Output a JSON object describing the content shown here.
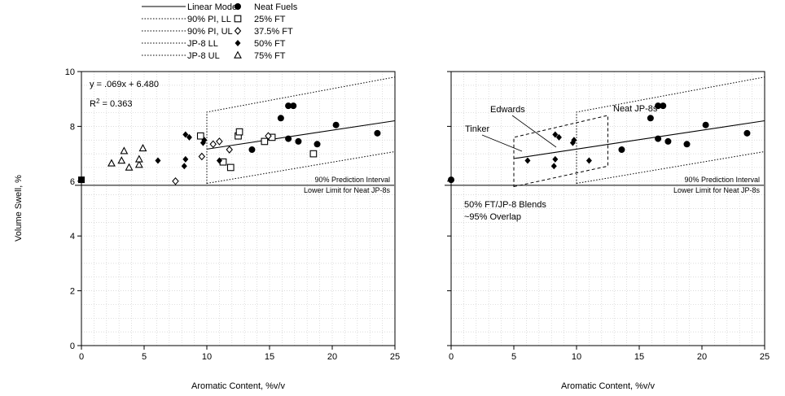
{
  "figure": {
    "ylabel": "Volume Swell, %",
    "legend": [
      {
        "label": "Linear Model",
        "kind": "line",
        "style": "solid"
      },
      {
        "label": "90% PI, LL",
        "kind": "line",
        "style": "dotted"
      },
      {
        "label": "90% PI, UL",
        "kind": "line",
        "style": "dotted"
      },
      {
        "label": "JP-8 LL",
        "kind": "line",
        "style": "dotted"
      },
      {
        "label": "JP-8 UL",
        "kind": "line",
        "style": "dotted"
      },
      {
        "label": "Neat Fuels",
        "kind": "marker",
        "marker": "filled-circle"
      },
      {
        "label": "25% FT",
        "kind": "marker",
        "marker": "open-square"
      },
      {
        "label": "37.5% FT",
        "kind": "marker",
        "marker": "open-diamond"
      },
      {
        "label": "50% FT",
        "kind": "marker",
        "marker": "filled-diamond"
      },
      {
        "label": "75% FT",
        "kind": "marker",
        "marker": "open-triangle"
      }
    ],
    "colors": {
      "ink": "#000000",
      "grid": "#cfcfcf"
    }
  },
  "chart_data": [
    {
      "type": "scatter",
      "panel": "left",
      "xlabel": "Aromatic Content, %v/v",
      "ylabel": "Volume Swell, %",
      "xlim": [
        0,
        25
      ],
      "ylim": [
        0,
        10
      ],
      "xticks": [
        0,
        5,
        10,
        15,
        20,
        25
      ],
      "yticks": [
        0,
        2,
        4,
        6,
        8,
        10
      ],
      "grid": true,
      "model": {
        "slope": 0.069,
        "intercept": 6.48,
        "x_range": [
          10,
          25
        ]
      },
      "pi_band": {
        "x_range": [
          10,
          25
        ],
        "ll_at_start": 5.92,
        "ll_at_end": 7.08,
        "ul_at_start": 8.52,
        "ul_at_end": 9.8
      },
      "annotations": {
        "equation": "y = .069x + 6.480",
        "r2_prefix": "R",
        "r2_exp": "2",
        "r2_rest": " = 0.363",
        "pi_line1": "90% Prediction Interval",
        "pi_line2": "Lower Limit for Neat JP-8s"
      },
      "threshold_y": 5.85,
      "series": [
        {
          "name": "Neat Fuels",
          "marker": "filled-circle",
          "points": [
            [
              13.6,
              7.15
            ],
            [
              15.9,
              8.3
            ],
            [
              16.5,
              7.55
            ],
            [
              16.5,
              8.75
            ],
            [
              16.9,
              8.75
            ],
            [
              17.3,
              7.45
            ],
            [
              18.8,
              7.35
            ],
            [
              20.3,
              8.05
            ],
            [
              23.6,
              7.75
            ]
          ]
        },
        {
          "name": "25% FT",
          "marker": "open-square",
          "points": [
            [
              9.5,
              7.65
            ],
            [
              11.3,
              6.7
            ],
            [
              11.9,
              6.5
            ],
            [
              12.5,
              7.65
            ],
            [
              12.6,
              7.8
            ],
            [
              14.6,
              7.45
            ],
            [
              15.2,
              7.6
            ],
            [
              18.5,
              7.0
            ]
          ]
        },
        {
          "name": "37.5% FT",
          "marker": "open-diamond",
          "points": [
            [
              7.5,
              6.0
            ],
            [
              9.6,
              6.9
            ],
            [
              10.5,
              7.35
            ],
            [
              11.0,
              7.45
            ],
            [
              11.8,
              7.15
            ],
            [
              14.9,
              7.65
            ]
          ]
        },
        {
          "name": "50% FT",
          "marker": "filled-diamond",
          "points": [
            [
              6.1,
              6.75
            ],
            [
              8.2,
              6.55
            ],
            [
              8.3,
              6.8
            ],
            [
              8.3,
              7.7
            ],
            [
              8.6,
              7.6
            ],
            [
              9.7,
              7.4
            ],
            [
              9.8,
              7.5
            ],
            [
              11.0,
              6.75
            ]
          ]
        },
        {
          "name": "75% FT",
          "marker": "open-triangle",
          "points": [
            [
              2.4,
              6.65
            ],
            [
              3.2,
              6.75
            ],
            [
              3.4,
              7.1
            ],
            [
              3.8,
              6.5
            ],
            [
              4.6,
              6.6
            ],
            [
              4.6,
              6.8
            ],
            [
              4.9,
              7.2
            ]
          ]
        },
        {
          "name": "",
          "marker": "filled-square",
          "points": [
            [
              0,
              6.05
            ]
          ]
        }
      ]
    },
    {
      "type": "scatter",
      "panel": "right",
      "xlabel": "Aromatic Content, %v/v",
      "xlim": [
        0,
        25
      ],
      "ylim": [
        0,
        10
      ],
      "xticks": [
        0,
        5,
        10,
        15,
        20,
        25
      ],
      "yticks": [
        0,
        2,
        4,
        6,
        8,
        10
      ],
      "grid": true,
      "model": {
        "slope": 0.069,
        "intercept": 6.48,
        "x_range": [
          5,
          25
        ]
      },
      "pi_band": {
        "x_range": [
          10,
          25
        ],
        "ll_at_start": 5.92,
        "ll_at_end": 7.08,
        "ul_at_start": 8.52,
        "ul_at_end": 9.8
      },
      "blend_band": {
        "x_range": [
          5,
          12.5
        ],
        "ll_at_start": 5.8,
        "ll_at_end": 6.55,
        "ul_at_start": 7.6,
        "ul_at_end": 8.4
      },
      "annotations": {
        "edwards": "Edwards",
        "tinker": "Tinker",
        "neat": "Neat JP-8s",
        "pi_line1": "90% Prediction Interval",
        "pi_line2": "Lower Limit for Neat JP-8s",
        "blend_line1": "50% FT/JP-8 Blends",
        "blend_line2": "~95% Overlap"
      },
      "threshold_y": 5.85,
      "series": [
        {
          "name": "Neat Fuels",
          "marker": "filled-circle",
          "points": [
            [
              0,
              6.05
            ],
            [
              13.6,
              7.15
            ],
            [
              15.9,
              8.3
            ],
            [
              16.5,
              7.55
            ],
            [
              16.5,
              8.75
            ],
            [
              16.9,
              8.75
            ],
            [
              17.3,
              7.45
            ],
            [
              18.8,
              7.35
            ],
            [
              20.3,
              8.05
            ],
            [
              23.6,
              7.75
            ]
          ]
        },
        {
          "name": "50% FT",
          "marker": "filled-diamond",
          "points": [
            [
              6.1,
              6.75
            ],
            [
              8.2,
              6.55
            ],
            [
              8.3,
              6.8
            ],
            [
              8.3,
              7.7
            ],
            [
              8.6,
              7.6
            ],
            [
              9.7,
              7.4
            ],
            [
              9.8,
              7.5
            ],
            [
              11.0,
              6.75
            ]
          ]
        }
      ]
    }
  ]
}
